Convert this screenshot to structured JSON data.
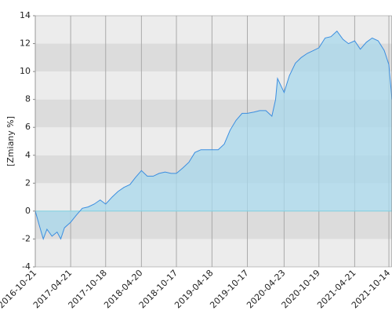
{
  "chart_data": {
    "type": "area",
    "y_label": "[Zmiany %]",
    "x": [
      "2016-10-21",
      "2016-11-10",
      "2016-12-01",
      "2016-12-20",
      "2017-01-15",
      "2017-02-10",
      "2017-03-01",
      "2017-03-20",
      "2017-04-21",
      "2017-05-20",
      "2017-06-20",
      "2017-07-20",
      "2017-08-20",
      "2017-09-20",
      "2017-10-18",
      "2017-11-20",
      "2017-12-20",
      "2018-01-20",
      "2018-02-20",
      "2018-03-20",
      "2018-04-20",
      "2018-05-20",
      "2018-06-20",
      "2018-07-20",
      "2018-08-20",
      "2018-09-20",
      "2018-10-17",
      "2018-11-20",
      "2018-12-20",
      "2019-01-20",
      "2019-02-20",
      "2019-03-20",
      "2019-04-18",
      "2019-05-20",
      "2019-06-20",
      "2019-07-20",
      "2019-08-20",
      "2019-09-20",
      "2019-10-17",
      "2019-11-20",
      "2019-12-20",
      "2020-01-20",
      "2020-02-20",
      "2020-03-10",
      "2020-03-20",
      "2020-04-23",
      "2020-05-20",
      "2020-06-20",
      "2020-07-20",
      "2020-08-20",
      "2020-09-20",
      "2020-10-19",
      "2020-11-20",
      "2020-12-20",
      "2021-01-20",
      "2021-02-20",
      "2021-03-20",
      "2021-04-21",
      "2021-05-20",
      "2021-06-20",
      "2021-07-20",
      "2021-08-20",
      "2021-09-20",
      "2021-10-14",
      "2021-10-30"
    ],
    "series": [
      {
        "color": "#3b8ee0",
        "fill": "#a8d8ec",
        "values": [
          0,
          -1,
          -2,
          -1.3,
          -1.8,
          -1.5,
          -2,
          -1.2,
          -0.8,
          -0.3,
          0.2,
          0.3,
          0.5,
          0.8,
          0.5,
          1,
          1.4,
          1.7,
          1.9,
          2.4,
          2.9,
          2.5,
          2.5,
          2.7,
          2.8,
          2.7,
          2.7,
          3.1,
          3.5,
          4.2,
          4.4,
          4.4,
          4.4,
          4.4,
          4.8,
          5.8,
          6.5,
          7,
          7,
          7.1,
          7.2,
          7.2,
          6.8,
          8,
          9.5,
          8.5,
          9.7,
          10.6,
          11,
          11.3,
          11.5,
          11.7,
          12.4,
          12.5,
          12.9,
          12.3,
          12,
          12.2,
          11.6,
          12.1,
          12.4,
          12.2,
          11.5,
          10.5,
          8
        ]
      }
    ],
    "xlim": [
      "2016-10-21",
      "2021-10-30"
    ],
    "xticks": [
      "2016-10-21",
      "2017-04-21",
      "2017-10-18",
      "2018-04-20",
      "2018-10-17",
      "2019-04-18",
      "2019-10-17",
      "2020-04-23",
      "2020-10-19",
      "2021-04-21",
      "2021-10-14"
    ],
    "ylim": [
      -4,
      14
    ],
    "yticks": [
      -4,
      -2,
      0,
      2,
      4,
      6,
      8,
      10,
      12,
      14
    ]
  }
}
